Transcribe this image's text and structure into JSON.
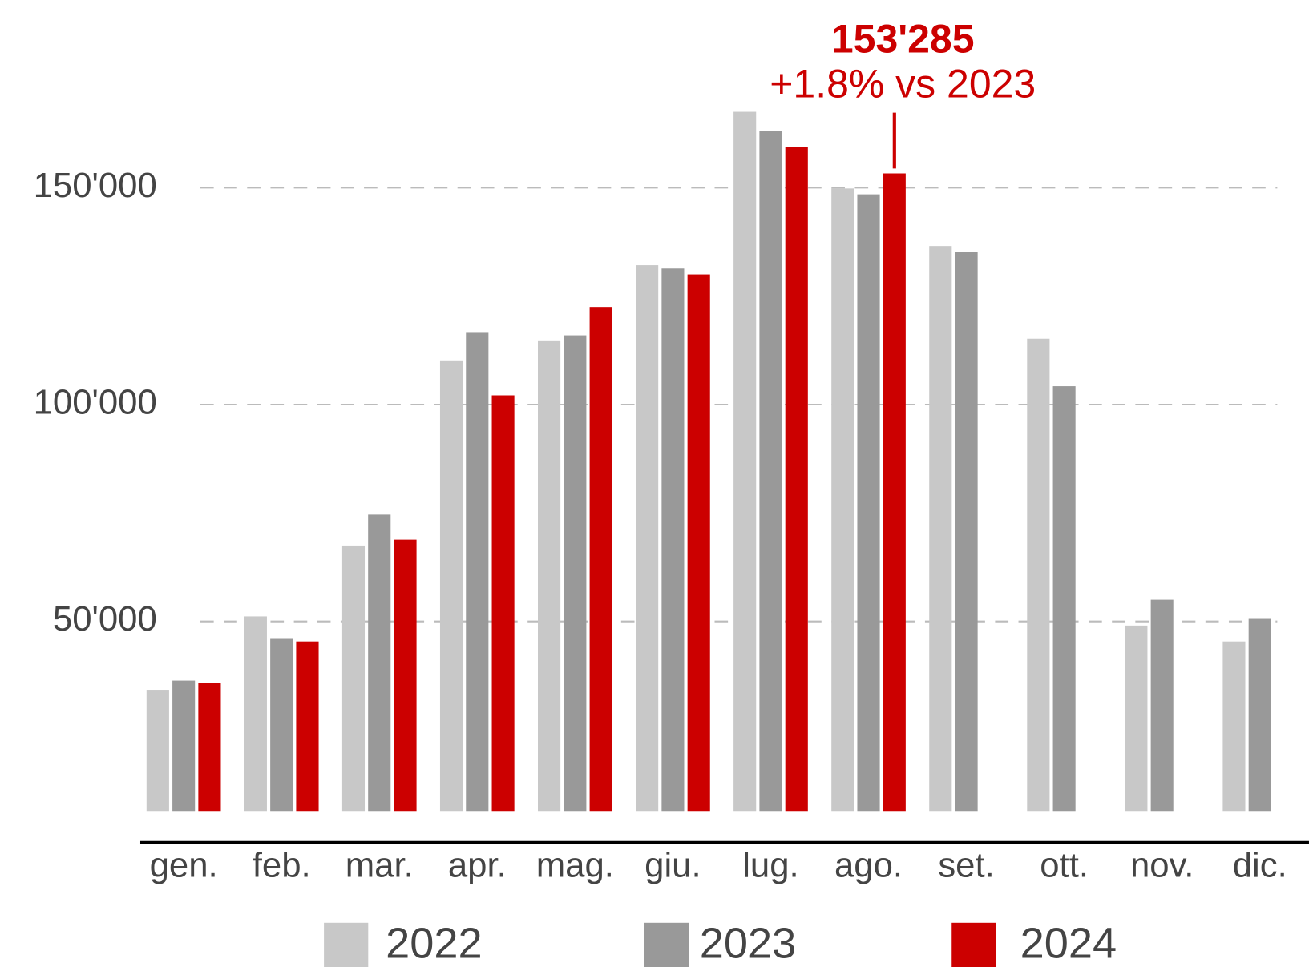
{
  "chart_data": {
    "type": "bar",
    "categories": [
      "gen.",
      "feb.",
      "mar.",
      "apr.",
      "mag.",
      "giu.",
      "lug.",
      "ago.",
      "set.",
      "ott.",
      "nov.",
      "dic."
    ],
    "series": [
      {
        "name": "2022",
        "color": "#c8c8c8",
        "values": [
          34230,
          51150,
          67500,
          110190,
          114620,
          132120,
          167500,
          149810,
          136540,
          115190,
          49040,
          45380
        ]
      },
      {
        "name": "2023",
        "color": "#999999",
        "values": [
          36350,
          46150,
          74620,
          116540,
          115960,
          131350,
          163080,
          148460,
          135190,
          104230,
          55000,
          50580
        ]
      },
      {
        "name": "2024",
        "color": "#cc0000",
        "values": [
          35770,
          45380,
          68850,
          102120,
          122500,
          130000,
          159420,
          153285,
          null,
          null,
          null,
          null
        ],
        "value_labels": [
          null,
          null,
          null,
          null,
          null,
          null,
          null,
          "153'285",
          null,
          null,
          null,
          null
        ]
      }
    ],
    "annotation": "+1.8% vs 2023",
    "ylim": [
      6300,
      170000
    ],
    "yticks": [
      {
        "value": 50000,
        "label": "50'000"
      },
      {
        "value": 100000,
        "label": "100'000"
      },
      {
        "value": 150000,
        "label": "150'000"
      }
    ],
    "grid": true,
    "legend": "bottom"
  }
}
